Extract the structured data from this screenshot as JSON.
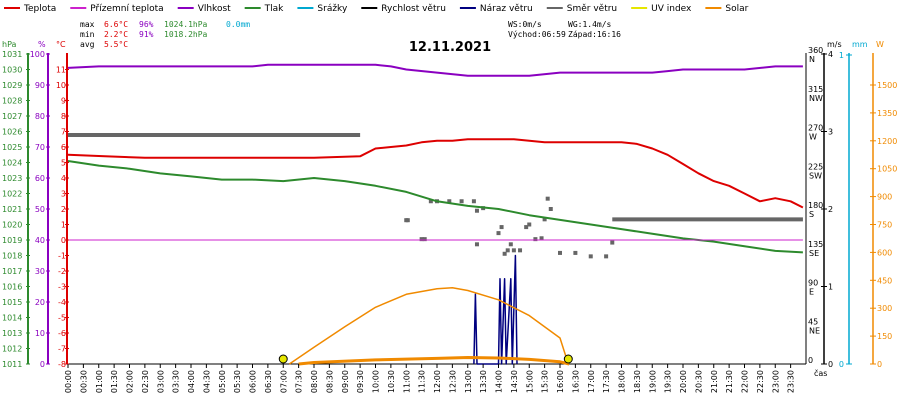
{
  "chart_data": {
    "type": "line",
    "title": "12.11.2021",
    "xlabel": "čas",
    "legend": [
      {
        "name": "Teplota",
        "color": "#dd0000"
      },
      {
        "name": "Přízemní teplota",
        "color": "#cc22cc"
      },
      {
        "name": "Vlhkost",
        "color": "#8a00c0"
      },
      {
        "name": "Tlak",
        "color": "#2d8a2d"
      },
      {
        "name": "Srážky",
        "color": "#00a8d0"
      },
      {
        "name": "Rychlost větru",
        "color": "#000000"
      },
      {
        "name": "Náraz větru",
        "color": "#000080"
      },
      {
        "name": "Směr větru",
        "color": "#666666"
      },
      {
        "name": "UV index",
        "color": "#e6e600"
      },
      {
        "name": "Solar",
        "color": "#f08a00"
      }
    ],
    "stats": {
      "max": {
        "label": "max",
        "temp": "6.6°C",
        "hum": "96%",
        "press": "1024.1hPa",
        "rain": "0.0mm"
      },
      "min": {
        "label": "min",
        "temp": "2.2°C",
        "hum": "91%",
        "press": "1018.2hPa"
      },
      "avg": {
        "label": "avg",
        "temp": "5.5°C"
      }
    },
    "info": {
      "ws": "WS:0m/s",
      "wg": "WG:1.4m/s",
      "sunrise": "Východ:06:59",
      "sunset": "Západ:16:16"
    },
    "axes": {
      "left_units": [
        "hPa",
        "%",
        "°C"
      ],
      "right_units": [
        "m/s",
        "mm",
        "W"
      ],
      "pressure_ticks": [
        "1031",
        "1030",
        "1029",
        "1028",
        "1027",
        "1026",
        "1025",
        "1024",
        "1023",
        "1022",
        "1021",
        "1020",
        "1019",
        "1018",
        "1017",
        "1016",
        "1015",
        "1014",
        "1013",
        "1012",
        "1011"
      ],
      "humidity_ticks": [
        "100",
        "90",
        "80",
        "70",
        "60",
        "50",
        "40",
        "30",
        "20",
        "10",
        "0"
      ],
      "temp_ticks": [
        "11",
        "10",
        "9",
        "8",
        "7",
        "6",
        "5",
        "4",
        "3",
        "2",
        "1",
        "0",
        "-1",
        "-2",
        "-3",
        "-4",
        "-5",
        "-6",
        "-7",
        "-8"
      ],
      "dir_ticks": [
        {
          "deg": 360,
          "label": "360",
          "dir": "N"
        },
        {
          "deg": 315,
          "label": "315",
          "dir": "NW"
        },
        {
          "deg": 270,
          "label": "270",
          "dir": "W"
        },
        {
          "deg": 225,
          "label": "225",
          "dir": "SW"
        },
        {
          "deg": 180,
          "label": "180",
          "dir": "S"
        },
        {
          "deg": 135,
          "label": "135",
          "dir": "SE"
        },
        {
          "deg": 90,
          "label": "90",
          "dir": "E"
        },
        {
          "deg": 45,
          "label": "45",
          "dir": "NE"
        },
        {
          "deg": 0,
          "label": "0",
          "dir": ""
        }
      ],
      "wind_ticks": [
        "4",
        "3",
        "2",
        "1",
        "0"
      ],
      "rain_ticks": [
        "1",
        "0"
      ],
      "solar_ticks": [
        "1500",
        "1350",
        "1200",
        "1050",
        "900",
        "750",
        "600",
        "450",
        "300",
        "150",
        "0"
      ],
      "x_ticks": [
        "00:00",
        "00:30",
        "01:00",
        "01:30",
        "02:00",
        "02:30",
        "03:00",
        "03:30",
        "04:00",
        "04:30",
        "05:00",
        "05:30",
        "06:00",
        "06:30",
        "07:00",
        "07:30",
        "08:00",
        "08:30",
        "09:00",
        "09:30",
        "10:00",
        "10:30",
        "11:00",
        "11:30",
        "12:00",
        "12:30",
        "13:00",
        "13:30",
        "14:00",
        "14:30",
        "15:00",
        "15:30",
        "16:00",
        "16:30",
        "17:00",
        "17:30",
        "18:00",
        "18:30",
        "19:00",
        "19:30",
        "20:00",
        "20:30",
        "21:00",
        "21:30",
        "22:00",
        "22:30",
        "23:00",
        "23:30"
      ]
    },
    "series": [
      {
        "name": "Teplota",
        "unit": "°C",
        "points": [
          [
            0,
            5.5
          ],
          [
            1.2,
            5.4
          ],
          [
            2.5,
            5.3
          ],
          [
            4,
            5.3
          ],
          [
            6,
            5.3
          ],
          [
            8,
            5.3
          ],
          [
            9.5,
            5.4
          ],
          [
            10,
            5.9
          ],
          [
            10.5,
            6.0
          ],
          [
            11,
            6.1
          ],
          [
            11.5,
            6.3
          ],
          [
            12,
            6.4
          ],
          [
            12.5,
            6.4
          ],
          [
            13,
            6.5
          ],
          [
            14,
            6.5
          ],
          [
            14.5,
            6.5
          ],
          [
            15,
            6.4
          ],
          [
            15.5,
            6.3
          ],
          [
            16,
            6.3
          ],
          [
            17,
            6.3
          ],
          [
            18,
            6.3
          ],
          [
            18.5,
            6.2
          ],
          [
            19,
            5.9
          ],
          [
            19.5,
            5.5
          ],
          [
            20,
            4.9
          ],
          [
            20.5,
            4.3
          ],
          [
            21,
            3.8
          ],
          [
            21.5,
            3.5
          ],
          [
            22,
            3.0
          ],
          [
            22.5,
            2.5
          ],
          [
            23,
            2.7
          ],
          [
            23.5,
            2.5
          ],
          [
            23.9,
            2.1
          ]
        ]
      },
      {
        "name": "Vlhkost",
        "unit": "%",
        "points": [
          [
            0,
            95.5
          ],
          [
            1,
            96
          ],
          [
            2,
            96
          ],
          [
            3,
            96
          ],
          [
            4,
            96
          ],
          [
            5,
            96
          ],
          [
            6,
            96
          ],
          [
            6.5,
            96.5
          ],
          [
            7,
            96.5
          ],
          [
            9,
            96.5
          ],
          [
            10,
            96.5
          ],
          [
            10.5,
            96
          ],
          [
            11,
            95
          ],
          [
            12,
            94
          ],
          [
            13,
            93
          ],
          [
            14,
            93
          ],
          [
            15,
            93
          ],
          [
            16,
            94
          ],
          [
            17,
            94
          ],
          [
            18,
            94
          ],
          [
            19,
            94
          ],
          [
            19.5,
            94.5
          ],
          [
            20,
            95
          ],
          [
            21,
            95
          ],
          [
            22,
            95
          ],
          [
            23,
            96
          ],
          [
            23.9,
            96
          ]
        ]
      },
      {
        "name": "Tlak",
        "unit": "hPa",
        "points": [
          [
            0,
            1024.1
          ],
          [
            1,
            1023.8
          ],
          [
            2,
            1023.6
          ],
          [
            3,
            1023.3
          ],
          [
            4,
            1023.1
          ],
          [
            5,
            1022.9
          ],
          [
            6,
            1022.9
          ],
          [
            7,
            1022.8
          ],
          [
            8,
            1023.0
          ],
          [
            9,
            1022.8
          ],
          [
            10,
            1022.5
          ],
          [
            11,
            1022.1
          ],
          [
            12,
            1021.5
          ],
          [
            13,
            1021.2
          ],
          [
            14,
            1021.0
          ],
          [
            15,
            1020.6
          ],
          [
            16,
            1020.3
          ],
          [
            17,
            1020.0
          ],
          [
            18,
            1019.7
          ],
          [
            19,
            1019.4
          ],
          [
            20,
            1019.1
          ],
          [
            21,
            1018.9
          ],
          [
            22,
            1018.6
          ],
          [
            23,
            1018.3
          ],
          [
            23.9,
            1018.2
          ]
        ]
      },
      {
        "name": "Přízemní teplota",
        "unit": "°C",
        "points": [
          [
            0,
            0.0
          ],
          [
            23.9,
            0.0
          ]
        ]
      },
      {
        "name": "Rychlost větru",
        "unit": "m/s",
        "points": [
          [
            0,
            0
          ],
          [
            23.9,
            0
          ]
        ]
      },
      {
        "name": "Náraz větru",
        "unit": "m/s",
        "points": [
          [
            13.2,
            0
          ],
          [
            13.25,
            0.9
          ],
          [
            13.3,
            0
          ],
          [
            14.0,
            0
          ],
          [
            14.05,
            1.1
          ],
          [
            14.1,
            0
          ],
          [
            14.2,
            1.1
          ],
          [
            14.25,
            0
          ],
          [
            14.4,
            1.1
          ],
          [
            14.45,
            0
          ],
          [
            14.55,
            1.4
          ],
          [
            14.6,
            0
          ]
        ]
      },
      {
        "name": "Solar",
        "unit": "W",
        "points": [
          [
            7.2,
            0
          ],
          [
            8,
            90
          ],
          [
            9,
            200
          ],
          [
            10,
            305
          ],
          [
            11,
            375
          ],
          [
            12,
            405
          ],
          [
            12.5,
            410
          ],
          [
            13,
            395
          ],
          [
            14,
            345
          ],
          [
            15,
            260
          ],
          [
            16,
            140
          ],
          [
            16.27,
            0
          ]
        ]
      },
      {
        "name": "Solar (current)",
        "unit": "W",
        "points": [
          [
            7.5,
            0
          ],
          [
            8,
            8
          ],
          [
            10,
            22
          ],
          [
            12,
            30
          ],
          [
            13,
            35
          ],
          [
            14,
            32
          ],
          [
            15,
            25
          ],
          [
            16,
            12
          ],
          [
            16.3,
            0
          ]
        ]
      }
    ],
    "wind_direction_segments": [
      {
        "from": 0,
        "to": 9.5,
        "deg": 266
      },
      {
        "from": 17.7,
        "to": 23.9,
        "deg": 168
      }
    ],
    "wind_direction_points": [
      [
        11.0,
        167
      ],
      [
        11.05,
        167
      ],
      [
        11.5,
        145
      ],
      [
        11.6,
        145
      ],
      [
        11.8,
        189
      ],
      [
        12.0,
        189
      ],
      [
        12.4,
        189
      ],
      [
        12.8,
        189
      ],
      [
        13.2,
        189
      ],
      [
        13.3,
        178
      ],
      [
        13.5,
        181
      ],
      [
        14.0,
        152
      ],
      [
        14.1,
        159
      ],
      [
        14.2,
        128
      ],
      [
        14.3,
        132
      ],
      [
        14.5,
        132
      ],
      [
        14.7,
        132
      ],
      [
        14.9,
        159
      ],
      [
        15.0,
        162
      ],
      [
        15.2,
        145
      ],
      [
        15.4,
        146
      ],
      [
        15.5,
        168
      ],
      [
        15.6,
        192
      ],
      [
        15.7,
        180
      ],
      [
        16.0,
        129
      ],
      [
        16.5,
        129
      ],
      [
        17.0,
        125
      ],
      [
        17.5,
        125
      ],
      [
        17.7,
        141
      ],
      [
        13.3,
        139
      ],
      [
        14.4,
        139
      ]
    ]
  }
}
